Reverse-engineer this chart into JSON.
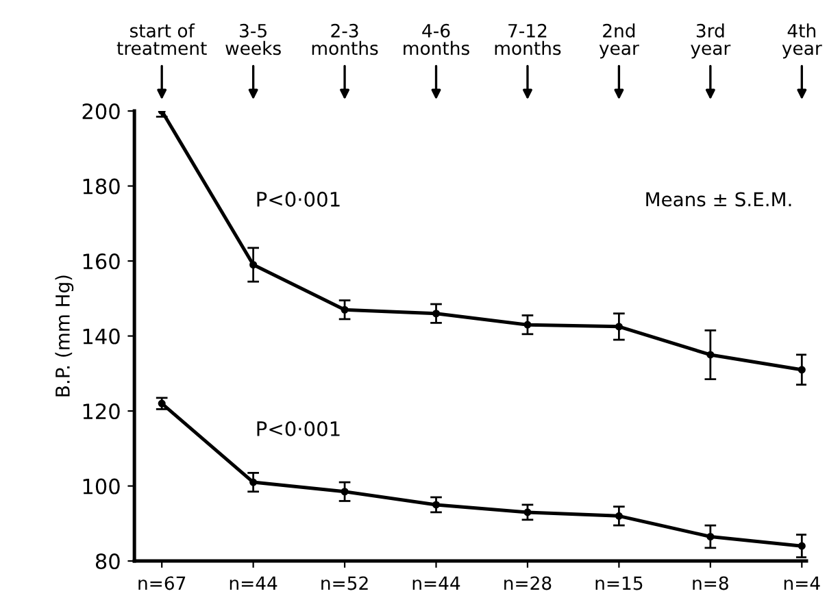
{
  "chart_data": {
    "type": "line",
    "ylabel": "B.P. (mm Hg)",
    "categories": [
      "start of\ntreatment",
      "3-5\nweeks",
      "2-3\nmonths",
      "4-6\nmonths",
      "7-12\nmonths",
      "2nd\nyear",
      "3rd\nyear",
      "4th\nyear"
    ],
    "series": [
      {
        "color": "#000000",
        "values": [
          200,
          159,
          147,
          146,
          143,
          142.5,
          135,
          131
        ],
        "errors": [
          1.5,
          4.5,
          2.5,
          2.5,
          2.5,
          3.5,
          6.5,
          4
        ]
      },
      {
        "color": "#000000",
        "values": [
          122,
          101,
          98.5,
          95,
          93,
          92,
          86.5,
          84
        ],
        "errors": [
          1.5,
          2.5,
          2.5,
          2,
          2,
          2.5,
          3,
          3
        ]
      }
    ],
    "ylim": [
      80,
      200
    ],
    "yticks": [
      80,
      100,
      120,
      140,
      160,
      180,
      200
    ],
    "marker": "circle",
    "line_style": "solid",
    "grid": false,
    "legend": false,
    "annotations": [
      "P<0·001",
      "P<0·001",
      "Means ± S.E.M.",
      "n=67",
      "n=44",
      "n=52",
      "n=44",
      "n=28",
      "n=15",
      "n=8",
      "n=4"
    ]
  }
}
